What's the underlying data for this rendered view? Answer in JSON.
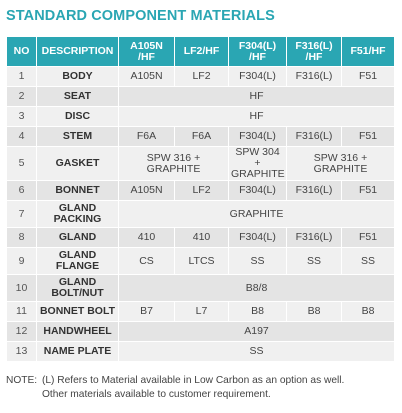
{
  "title": "STANDARD COMPONENT MATERIALS",
  "headers": {
    "no": "NO",
    "description": "DESCRIPTION",
    "a105n": "A105N /HF",
    "lf2": "LF2/HF",
    "f304": "F304(L) /HF",
    "f316": "F316(L) /HF",
    "f51": "F51/HF"
  },
  "rows": [
    {
      "no": "1",
      "desc": "BODY",
      "c1": "A105N",
      "c2": "LF2",
      "c3": "F304(L)",
      "c4": "F316(L)",
      "c5": "F51"
    },
    {
      "no": "2",
      "desc": "SEAT",
      "all": "HF"
    },
    {
      "no": "3",
      "desc": "DISC",
      "all": "HF"
    },
    {
      "no": "4",
      "desc": "STEM",
      "c1": "F6A",
      "c2": "F6A",
      "c3": "F304(L)",
      "c4": "F316(L)",
      "c5": "F51"
    },
    {
      "no": "5",
      "desc": "GASKET",
      "c12": "SPW 316 + GRAPHITE",
      "c3": "SPW 304 + GRAPHITE",
      "c45": "SPW 316 + GRAPHITE"
    },
    {
      "no": "6",
      "desc": "BONNET",
      "c1": "A105N",
      "c2": "LF2",
      "c3": "F304(L)",
      "c4": "F316(L)",
      "c5": "F51"
    },
    {
      "no": "7",
      "desc": "GLAND PACKING",
      "all": "GRAPHITE"
    },
    {
      "no": "8",
      "desc": "GLAND",
      "c1": "410",
      "c2": "410",
      "c3": "F304(L)",
      "c4": "F316(L)",
      "c5": "F51"
    },
    {
      "no": "9",
      "desc": "GLAND FLANGE",
      "c1": "CS",
      "c2": "LTCS",
      "c3": "SS",
      "c4": "SS",
      "c5": "SS"
    },
    {
      "no": "10",
      "desc": "GLAND BOLT/NUT",
      "all": "B8/8"
    },
    {
      "no": "11",
      "desc": "BONNET BOLT",
      "c1": "B7",
      "c2": "L7",
      "c3": "B8",
      "c4": "B8",
      "c5": "B8"
    },
    {
      "no": "12",
      "desc": "HANDWHEEL",
      "all": "A197"
    },
    {
      "no": "13",
      "desc": "NAME PLATE",
      "all": "SS"
    }
  ],
  "note": {
    "label": "NOTE:",
    "line1": "(L) Refers to Material available in Low Carbon as an option as well.",
    "line2": "Other materials available to customer requirement."
  }
}
